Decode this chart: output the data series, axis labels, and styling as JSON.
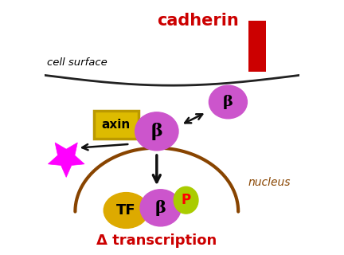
{
  "bg_color": "#ffffff",
  "cadherin_color": "#cc0000",
  "beta_color": "#cc55cc",
  "axin_box_facecolor": "#ddbb00",
  "axin_box_edgecolor": "#bb9900",
  "tf_color": "#ddaa00",
  "p_color": "#aacc00",
  "nucleus_color": "#884400",
  "cell_surface_color": "#222222",
  "arrow_color": "#111111",
  "star_color": "#ff00ff",
  "cell_surface_text": "cell surface",
  "cadherin_text": "cadherin",
  "nucleus_text": "nucleus",
  "transcription_text": "Δ transcription",
  "beta_label": "β",
  "tf_label": "TF",
  "p_label": "P",
  "axin_label": "axin",
  "figw": 4.32,
  "figh": 3.2,
  "dpi": 100
}
